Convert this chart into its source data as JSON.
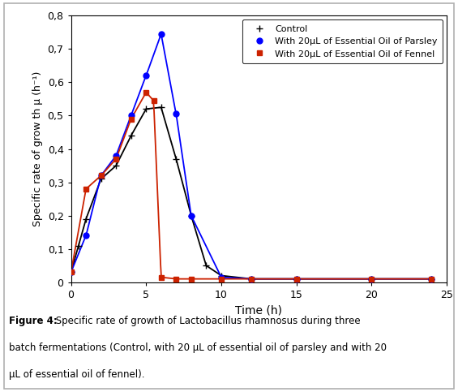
{
  "control": {
    "x": [
      0,
      0.5,
      1,
      2,
      3,
      4,
      5,
      6,
      7,
      8,
      9,
      10,
      12,
      15,
      20,
      24
    ],
    "y": [
      0.03,
      0.11,
      0.19,
      0.31,
      0.35,
      0.44,
      0.52,
      0.525,
      0.37,
      0.2,
      0.05,
      0.02,
      0.01,
      0.01,
      0.01,
      0.01
    ],
    "color": "#000000",
    "marker": "+"
  },
  "parsley": {
    "x": [
      0,
      1,
      2,
      3,
      4,
      5,
      6,
      7,
      8,
      10,
      12,
      15,
      20,
      24
    ],
    "y": [
      0.03,
      0.14,
      0.32,
      0.38,
      0.5,
      0.62,
      0.745,
      0.505,
      0.2,
      0.015,
      0.01,
      0.01,
      0.01,
      0.01
    ],
    "color": "#0000FF",
    "marker": "o"
  },
  "fennel": {
    "x": [
      0,
      1,
      2,
      3,
      4,
      5,
      5.5,
      6.0,
      7,
      8,
      10,
      12,
      15,
      20,
      24
    ],
    "y": [
      0.03,
      0.28,
      0.32,
      0.37,
      0.49,
      0.57,
      0.545,
      0.015,
      0.01,
      0.01,
      0.01,
      0.01,
      0.01,
      0.01,
      0.01
    ],
    "color": "#CC2200",
    "marker": "s"
  },
  "legend_labels": [
    "Control",
    "With 20μL of Essential Oil of Parsley",
    "With 20μL of Essential Oil of Fennel"
  ],
  "xlabel": "Time (h)",
  "ylabel": "Specific rate of grow th μ (h⁻¹)",
  "xlim": [
    0,
    25
  ],
  "ylim": [
    0,
    0.8
  ],
  "yticks": [
    0.0,
    0.1,
    0.2,
    0.3,
    0.4,
    0.5,
    0.6,
    0.7,
    0.8
  ],
  "xticks": [
    0,
    5,
    10,
    15,
    20,
    25
  ],
  "caption_bold": "Figure 4:",
  "caption_normal": " Specific rate of growth of Lactobacillus rhamnosus during three batch fermentations (Control, with 20 μL of essential oil of parsley and with 20 μL of essential oil of fennel)."
}
